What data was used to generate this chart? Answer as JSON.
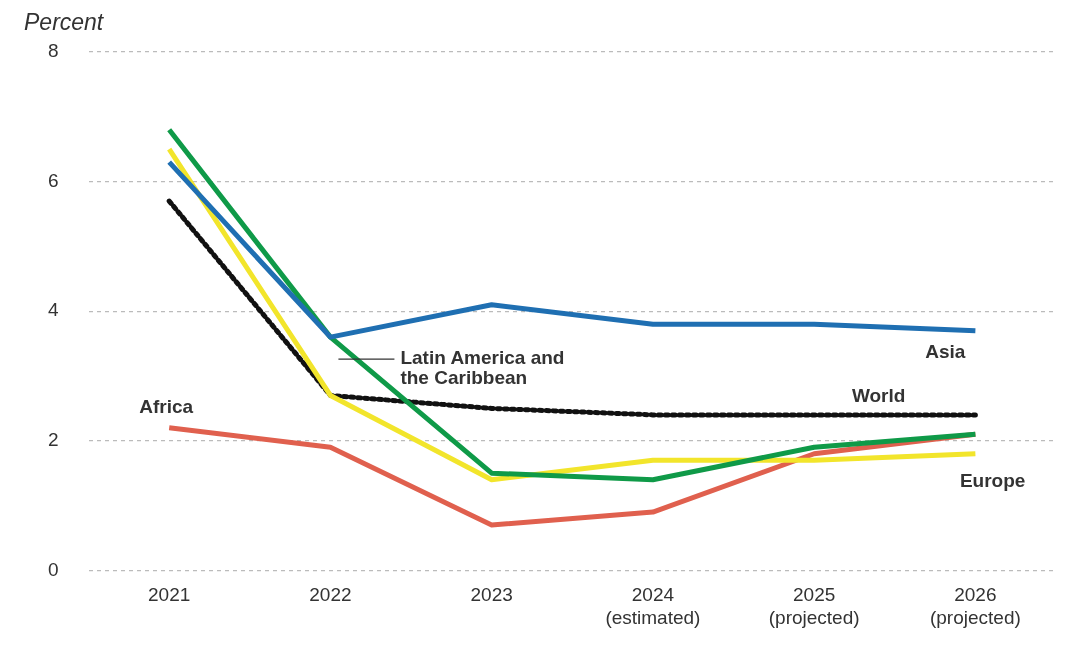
{
  "chart_data": {
    "type": "line",
    "ylabel": "Percent",
    "categories": [
      "2021",
      "2022",
      "2023",
      "2024 (estimated)",
      "2025 (projected)",
      "2026 (projected)"
    ],
    "series": [
      {
        "name": "Asia",
        "color": "#1f6fb2",
        "values": [
          6.3,
          3.6,
          4.1,
          3.8,
          3.8,
          3.7
        ]
      },
      {
        "name": "Latin America and the Caribbean",
        "color": "#0f9a48",
        "values": [
          6.8,
          3.6,
          1.5,
          1.4,
          1.9,
          2.1
        ]
      },
      {
        "name": "Europe",
        "color": "#f2e52b",
        "values": [
          6.5,
          2.7,
          1.4,
          1.7,
          1.7,
          1.8
        ]
      },
      {
        "name": "World",
        "color": "#111111",
        "line_style": "dotted",
        "values": [
          5.7,
          2.7,
          2.5,
          2.4,
          2.4,
          2.4
        ]
      },
      {
        "name": "Africa",
        "color": "#e0604e",
        "values": [
          2.2,
          1.9,
          0.7,
          0.9,
          1.8,
          2.1
        ]
      }
    ],
    "ylim": [
      0,
      8
    ],
    "yticks": [
      0,
      2,
      4,
      6,
      8
    ],
    "grid": "y",
    "legend": false,
    "marker": "none"
  }
}
